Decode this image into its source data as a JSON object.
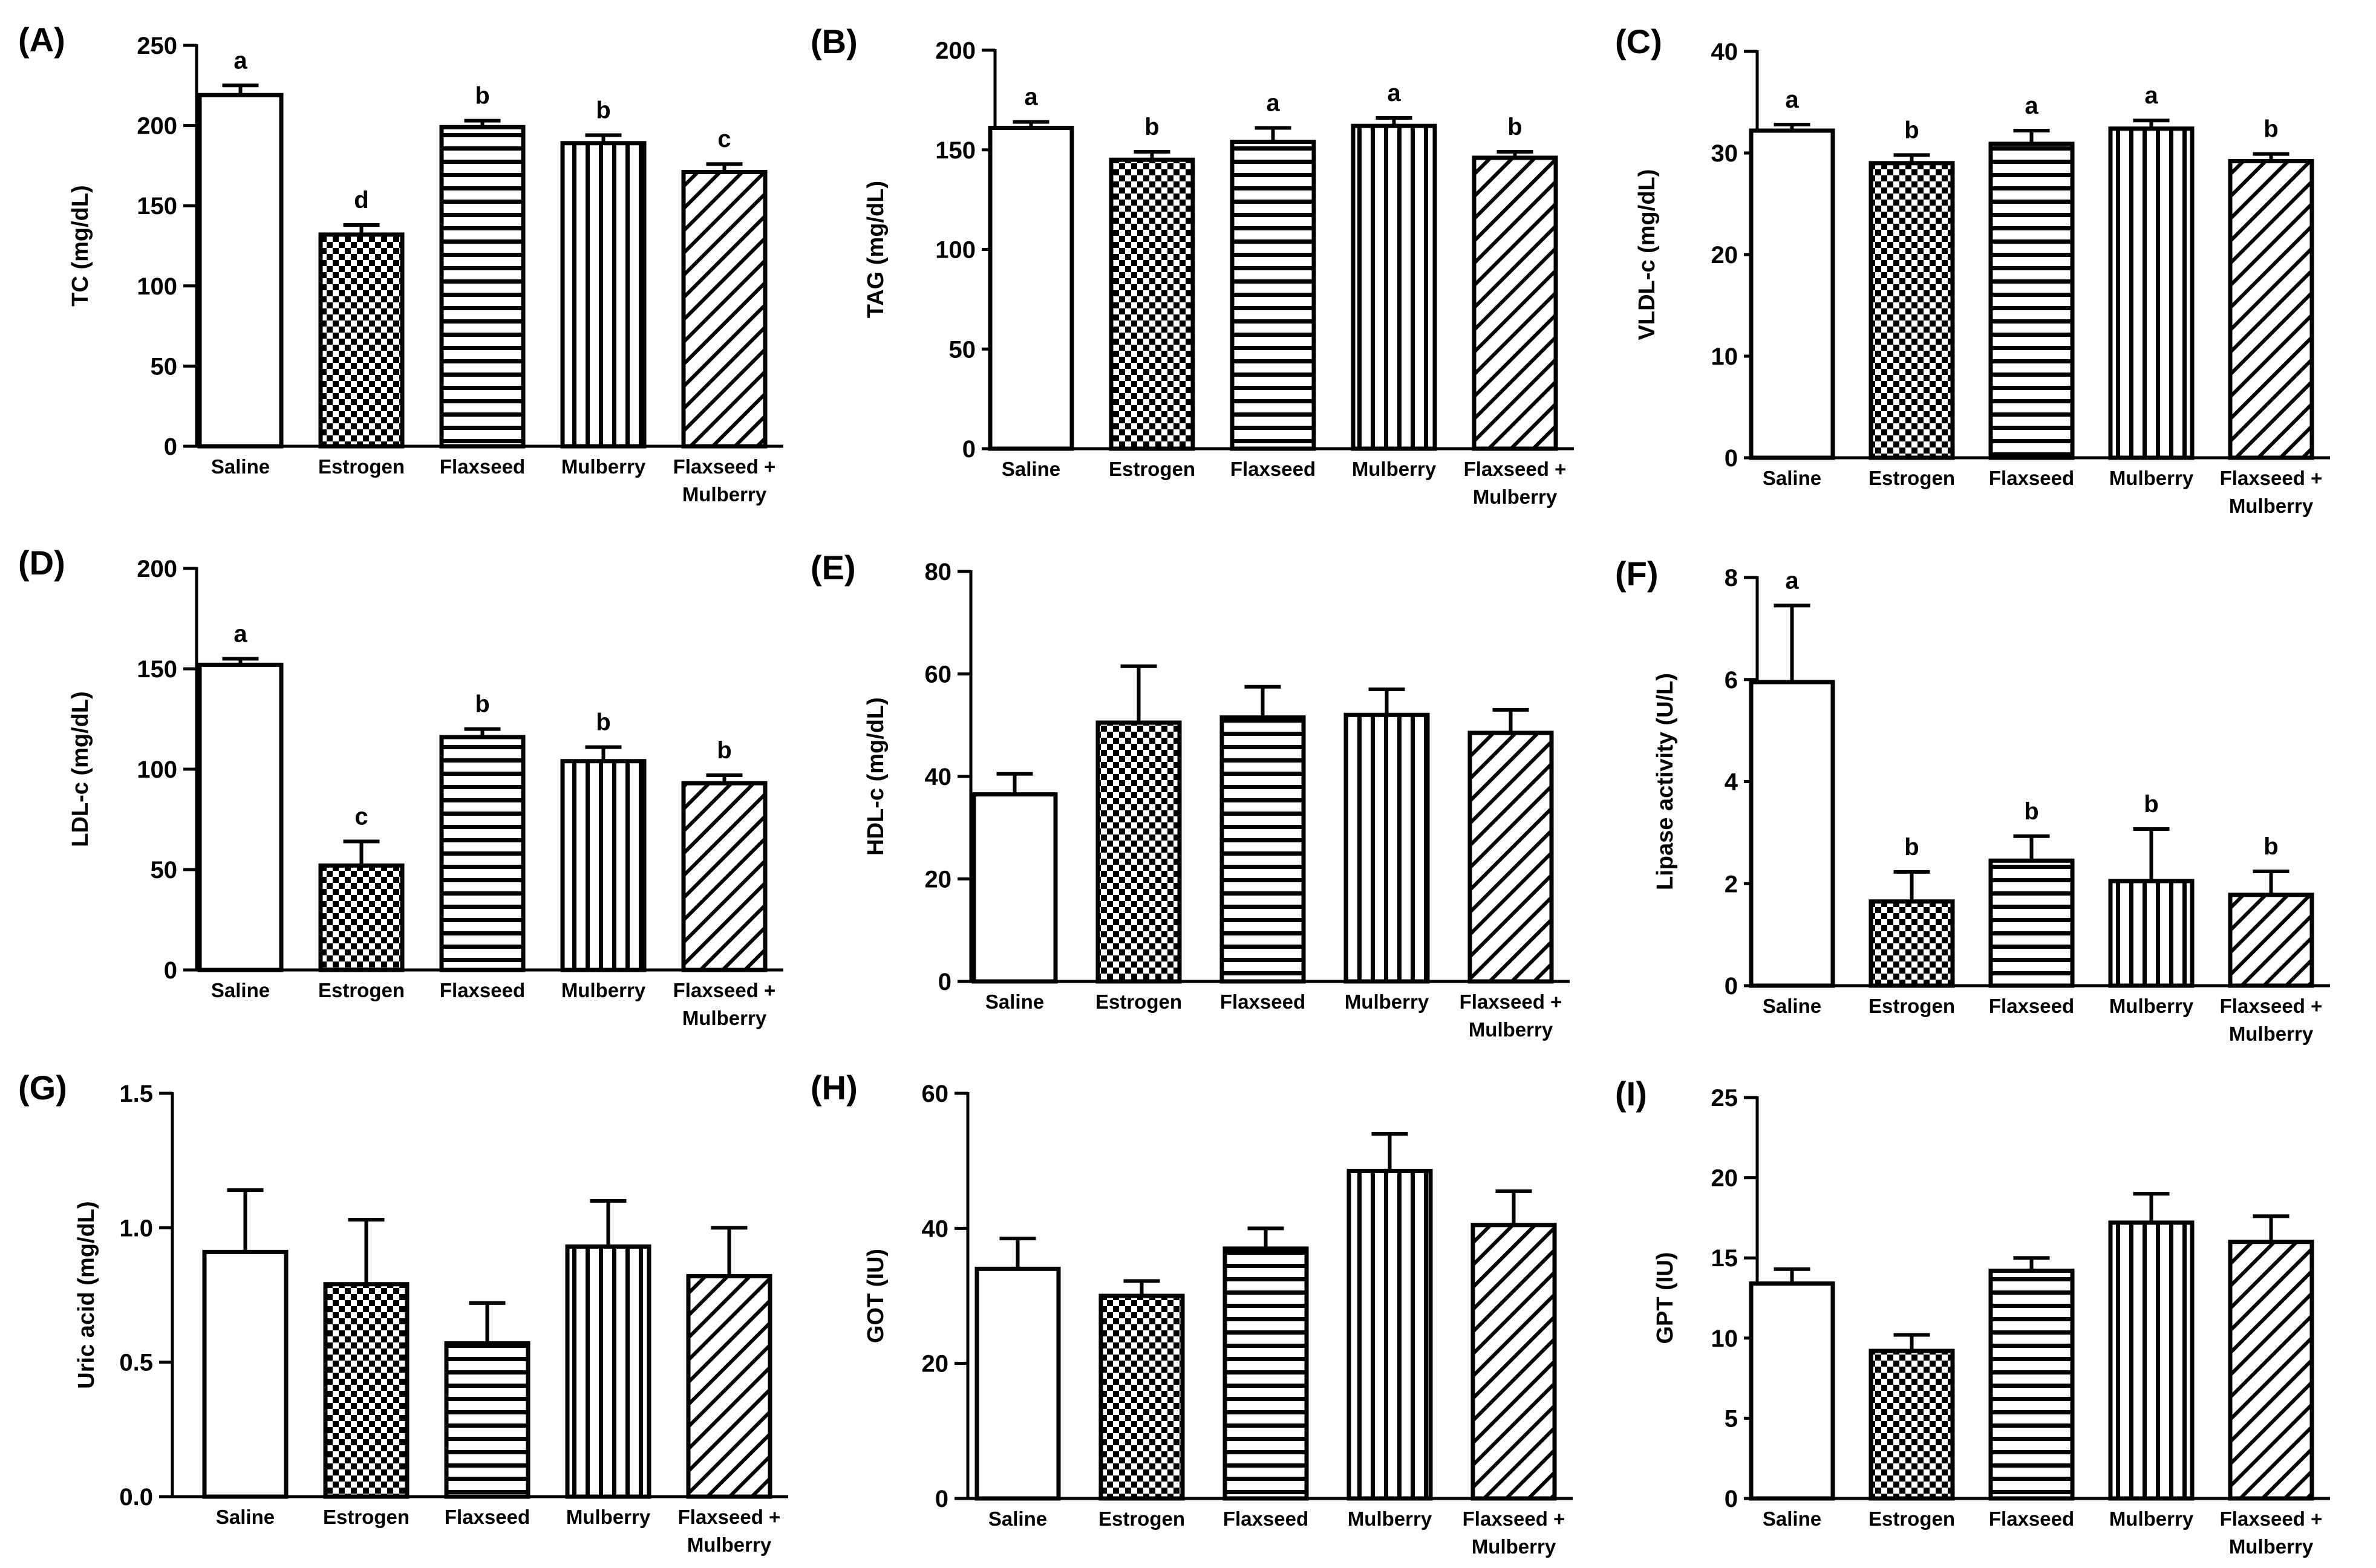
{
  "figure": {
    "categories": [
      "Saline",
      "Estrogen",
      "Flaxseed",
      "Mulberry",
      "Flaxseed + Mulberry"
    ],
    "category_lines": [
      [
        "Saline"
      ],
      [
        "Estrogen"
      ],
      [
        "Flaxseed"
      ],
      [
        "Mulberry"
      ],
      [
        "Flaxseed +",
        "Mulberry"
      ]
    ],
    "patterns": [
      "blank-pattern",
      "checkered-pattern",
      "horizontal-lines-pattern",
      "vertical-lines-pattern",
      "diagonal-lines-pattern"
    ]
  },
  "chart_data": [
    {
      "type": "bar",
      "panel": "(A)",
      "ylabel": "TC (mg/dL)",
      "ylim": [
        0,
        250
      ],
      "yticks": [
        0,
        50,
        100,
        150,
        200,
        250
      ],
      "categories": [
        "Saline",
        "Estrogen",
        "Flaxseed",
        "Mulberry",
        "Flaxseed + Mulberry"
      ],
      "values": [
        219,
        132,
        199,
        189,
        171
      ],
      "errors": [
        6,
        6,
        4,
        5,
        5
      ],
      "labels": [
        "a",
        "d",
        "b",
        "b",
        "c"
      ]
    },
    {
      "type": "bar",
      "panel": "(B)",
      "ylabel": "TAG (mg/dL)",
      "ylim": [
        0,
        200
      ],
      "yticks": [
        0,
        50,
        100,
        150,
        200
      ],
      "categories": [
        "Saline",
        "Estrogen",
        "Flaxseed",
        "Mulberry",
        "Flaxseed + Mulberry"
      ],
      "values": [
        161,
        145,
        154,
        162,
        146
      ],
      "errors": [
        3,
        4,
        7,
        4,
        3
      ],
      "labels": [
        "a",
        "b",
        "a",
        "a",
        "b"
      ]
    },
    {
      "type": "bar",
      "panel": "(C)",
      "ylabel": "VLDL-c (mg/dL)",
      "ylim": [
        0,
        40
      ],
      "yticks": [
        0,
        10,
        20,
        30,
        40
      ],
      "categories": [
        "Saline",
        "Estrogen",
        "Flaxseed",
        "Mulberry",
        "Flaxseed + Mulberry"
      ],
      "values": [
        32.2,
        29.0,
        30.9,
        32.4,
        29.2
      ],
      "errors": [
        0.6,
        0.8,
        1.3,
        0.8,
        0.7
      ],
      "labels": [
        "a",
        "b",
        "a",
        "a",
        "b"
      ]
    },
    {
      "type": "bar",
      "panel": "(D)",
      "ylabel": "LDL-c (mg/dL)",
      "ylim": [
        0,
        200
      ],
      "yticks": [
        0,
        50,
        100,
        150,
        200
      ],
      "categories": [
        "Saline",
        "Estrogen",
        "Flaxseed",
        "Mulberry",
        "Flaxseed + Mulberry"
      ],
      "values": [
        152,
        52,
        116,
        104,
        93
      ],
      "errors": [
        3,
        12,
        4,
        7,
        4
      ],
      "labels": [
        "a",
        "c",
        "b",
        "b",
        "b"
      ]
    },
    {
      "type": "bar",
      "panel": "(E)",
      "ylabel": "HDL-c (mg/dL)",
      "ylim": [
        0,
        80
      ],
      "yticks": [
        0,
        20,
        40,
        60,
        80
      ],
      "categories": [
        "Saline",
        "Estrogen",
        "Flaxseed",
        "Mulberry",
        "Flaxseed + Mulberry"
      ],
      "values": [
        36.5,
        50.5,
        51.5,
        52,
        48.5
      ],
      "errors": [
        4,
        11,
        6,
        5,
        4.5
      ],
      "labels": [
        "",
        "",
        "",
        "",
        ""
      ]
    },
    {
      "type": "bar",
      "panel": "(F)",
      "ylabel": "Lipase activity (U/L)",
      "ylim": [
        0,
        8
      ],
      "yticks": [
        0,
        2,
        4,
        6,
        8
      ],
      "categories": [
        "Saline",
        "Estrogen",
        "Flaxseed",
        "Mulberry",
        "Flaxseed + Mulberry"
      ],
      "values": [
        5.95,
        1.65,
        2.45,
        2.05,
        1.78
      ],
      "errors": [
        1.5,
        0.58,
        0.48,
        1.02,
        0.46
      ],
      "labels": [
        "a",
        "b",
        "b",
        "b",
        "b"
      ]
    },
    {
      "type": "bar",
      "panel": "(G)",
      "ylabel": "Uric acid (mg/dL)",
      "ylim": [
        0,
        1.5
      ],
      "yticks": [
        "0.0",
        "0.5",
        "1.0",
        "1.5"
      ],
      "categories": [
        "Saline",
        "Estrogen",
        "Flaxseed",
        "Mulberry",
        "Flaxseed + Mulberry"
      ],
      "values": [
        0.91,
        0.79,
        0.57,
        0.93,
        0.82
      ],
      "errors": [
        0.23,
        0.24,
        0.15,
        0.17,
        0.18
      ],
      "labels": [
        "",
        "",
        "",
        "",
        ""
      ]
    },
    {
      "type": "bar",
      "panel": "(H)",
      "ylabel": "GOT (IU)",
      "ylim": [
        0,
        60
      ],
      "yticks": [
        0,
        20,
        40,
        60
      ],
      "categories": [
        "Saline",
        "Estrogen",
        "Flaxseed",
        "Mulberry",
        "Flaxseed + Mulberry"
      ],
      "values": [
        34,
        30,
        37,
        48.5,
        40.5
      ],
      "errors": [
        4.5,
        2.2,
        3,
        5.5,
        5
      ],
      "labels": [
        "",
        "",
        "",
        "",
        ""
      ]
    },
    {
      "type": "bar",
      "panel": "(I)",
      "ylabel": "GPT (IU)",
      "ylim": [
        0,
        25
      ],
      "yticks": [
        0,
        5,
        10,
        15,
        20,
        25
      ],
      "categories": [
        "Saline",
        "Estrogen",
        "Flaxseed",
        "Mulberry",
        "Flaxseed + Mulberry"
      ],
      "values": [
        13.4,
        9.2,
        14.2,
        17.2,
        16
      ],
      "errors": [
        0.9,
        1.0,
        0.8,
        1.8,
        1.6
      ],
      "labels": [
        "",
        "",
        "",
        "",
        ""
      ]
    }
  ]
}
